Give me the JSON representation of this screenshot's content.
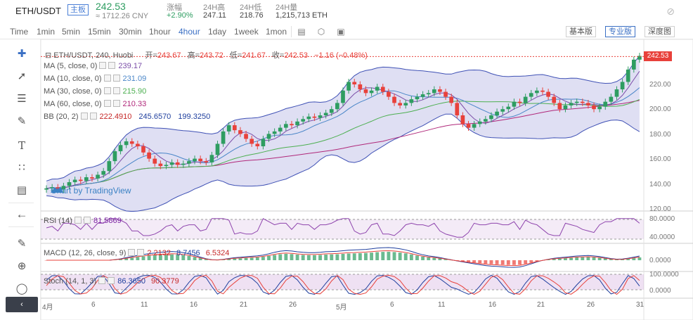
{
  "header": {
    "pair": "ETH/USDT",
    "badge": "主板",
    "last_price": "242.53",
    "cny": "≈ 1712.26 CNY",
    "stats": [
      {
        "label": "涨幅",
        "value": "+2.90%",
        "up": true
      },
      {
        "label": "24H高",
        "value": "247.11",
        "up": false
      },
      {
        "label": "24H低",
        "value": "218.76",
        "up": false
      },
      {
        "label": "24H量",
        "value": "1,215,713 ETH",
        "up": false
      }
    ],
    "right_icon": "eye-off-icon"
  },
  "toolbar": {
    "timeframes": [
      {
        "label": "Time",
        "active": false
      },
      {
        "label": "1min",
        "active": false
      },
      {
        "label": "5min",
        "active": false
      },
      {
        "label": "15min",
        "active": false
      },
      {
        "label": "30min",
        "active": false
      },
      {
        "label": "1hour",
        "active": false
      },
      {
        "label": "4hour",
        "active": true
      },
      {
        "label": "1day",
        "active": false
      },
      {
        "label": "1week",
        "active": false
      },
      {
        "label": "1mon",
        "active": false
      }
    ],
    "icons": [
      "candle-type-icon",
      "indicators-icon",
      "fullscreen-icon"
    ],
    "views": [
      {
        "label": "基本版",
        "active": false
      },
      {
        "label": "专业版",
        "active": true
      },
      {
        "label": "深度图",
        "active": false
      }
    ]
  },
  "left_tools": [
    "crosshair-icon",
    "trend-line-icon",
    "fib-icon",
    "brush-icon",
    "text-icon",
    "pattern-icon",
    "measure-icon",
    "back-arrow-icon",
    "ruler-icon",
    "zoom-in-icon",
    "lock-icon"
  ],
  "legend": {
    "main": {
      "symbol": "ETH/USDT, 240, Huobi",
      "open_label": "开=",
      "open": "243.67",
      "high_label": "高=",
      "high": "243.72",
      "low_label": "低=",
      "low": "241.67",
      "close_label": "收=",
      "close": "242.53",
      "change": "−1.16 (−0.48%)"
    },
    "ma5": {
      "label": "MA (5, close, 0)",
      "value": "239.17",
      "color": "#7b4ea8"
    },
    "ma10": {
      "label": "MA (10, close, 0)",
      "value": "231.09",
      "color": "#4a86c8"
    },
    "ma30": {
      "label": "MA (30, close, 0)",
      "value": "215.90",
      "color": "#4caf50"
    },
    "ma60": {
      "label": "MA (60, close, 0)",
      "value": "210.33",
      "color": "#b0287a"
    },
    "bb": {
      "label": "BB (20, 2)",
      "v1": "222.4910",
      "v2": "245.6570",
      "v3": "199.3250"
    },
    "rsi": {
      "label": "RSI (14)",
      "value": "81.5869"
    },
    "macd": {
      "label": "MACD (12, 26, close, 9)",
      "v1": "2.2132",
      "v2": "8.7456",
      "v3": "6.5324"
    },
    "stoch": {
      "label": "Stoch (14, 1, 3)",
      "v1": "86.3650",
      "v2": "90.3779"
    }
  },
  "price_axis": [
    "220.00",
    "200.00",
    "180.00",
    "160.00",
    "140.00",
    "120.00"
  ],
  "price_tag": "242.53",
  "rsi_axis": [
    "80.0000",
    "40.0000"
  ],
  "macd_axis": [
    "0.0000"
  ],
  "stoch_axis": [
    "100.0000",
    "0.0000"
  ],
  "dates": [
    "4月",
    "6",
    "11",
    "16",
    "21",
    "26",
    "5月",
    "6",
    "11",
    "16",
    "21",
    "26",
    "31"
  ],
  "watermark": "Chart by TradingView",
  "chart_data": {
    "type": "candlestick",
    "series_close": [
      136,
      137,
      135,
      138,
      141,
      143,
      142,
      145,
      144,
      147,
      150,
      158,
      166,
      171,
      174,
      172,
      170,
      165,
      160,
      156,
      154,
      155,
      157,
      155,
      156,
      158,
      160,
      158,
      157,
      163,
      172,
      182,
      187,
      183,
      180,
      176,
      172,
      170,
      176,
      180,
      182,
      185,
      188,
      187,
      190,
      192,
      194,
      193,
      195,
      197,
      200,
      205,
      215,
      222,
      220,
      216,
      213,
      215,
      218,
      214,
      210,
      205,
      203,
      205,
      208,
      210,
      212,
      213,
      216,
      214,
      210,
      205,
      195,
      188,
      185,
      188,
      190,
      192,
      195,
      198,
      200,
      202,
      206,
      205,
      210,
      213,
      215,
      214,
      210,
      205,
      200,
      203,
      205,
      206,
      205,
      203,
      200,
      202,
      206,
      210,
      216,
      222,
      232,
      240,
      243
    ]
  }
}
